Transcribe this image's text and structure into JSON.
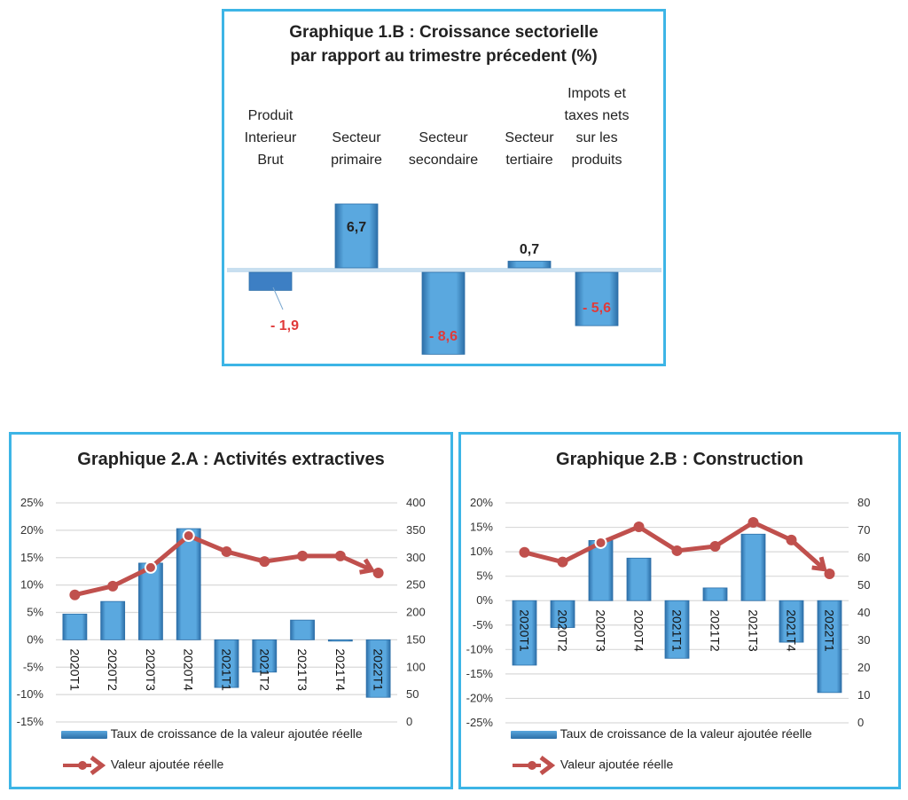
{
  "colors": {
    "frame": "#3db5e6",
    "bar": "#4b9bd6",
    "bar_dark": "#2d6fa8",
    "line": "#c0504d",
    "negative_label": "#e03a3a",
    "positive_label": "#222222",
    "grid": "#d9d9d9"
  },
  "chart_data": [
    {
      "type": "bar",
      "title_line1": "Graphique 1.B : Croissance sectorielle",
      "title_line2": "par rapport au trimestre précedent (%)",
      "categories": [
        [
          "Produit",
          "Interieur",
          "Brut"
        ],
        [
          "Secteur",
          "primaire"
        ],
        [
          "Secteur",
          "secondaire"
        ],
        [
          "Secteur",
          "tertiaire"
        ],
        [
          "Impots et",
          "taxes nets",
          "sur les",
          "produits"
        ]
      ],
      "values": [
        -1.9,
        6.7,
        -8.6,
        0.7,
        -5.6
      ],
      "value_labels": [
        "- 1,9",
        "6,7",
        "- 8,6",
        "0,7",
        "- 5,6"
      ],
      "xlabel": "",
      "ylabel": "",
      "ylim": [
        -9,
        7
      ]
    },
    {
      "type": "bar",
      "title": "Graphique 2.A : Activités extractives",
      "categories": [
        "2020T1",
        "2020T2",
        "2020T3",
        "2020T4",
        "2021T1",
        "2021T2",
        "2021T3",
        "2021T4",
        "2022T1"
      ],
      "series": [
        {
          "name": "Taux de croissance de la valeur ajoutée réelle",
          "type": "bar",
          "axis": "left",
          "values": [
            4.7,
            7.0,
            14.0,
            20.3,
            -8.7,
            -5.9,
            3.6,
            -0.2,
            -10.5
          ]
        },
        {
          "name": "Valeur ajoutée réelle",
          "type": "line",
          "axis": "right",
          "values": [
            232,
            248,
            282,
            340,
            311,
            293,
            303,
            303,
            272
          ]
        }
      ],
      "y_left": {
        "min": -15,
        "max": 25,
        "step": 5,
        "ticks": [
          "25%",
          "20%",
          "15%",
          "10%",
          "5%",
          "0%",
          "-5%",
          "-10%",
          "-15%"
        ]
      },
      "y_right": {
        "min": 0,
        "max": 400,
        "step": 50,
        "ticks": [
          "400",
          "350",
          "300",
          "250",
          "200",
          "150",
          "100",
          "50",
          "0"
        ]
      },
      "legend": "bottom",
      "grid": true
    },
    {
      "type": "bar",
      "title": "Graphique 2.B : Construction",
      "categories": [
        "2020T1",
        "2020T2",
        "2020T3",
        "2020T4",
        "2021T1",
        "2021T2",
        "2021T3",
        "2021T4",
        "2022T1"
      ],
      "series": [
        {
          "name": "Taux de croissance de la valeur ajoutée réelle",
          "type": "bar",
          "axis": "left",
          "values": [
            -13.2,
            -5.5,
            12.3,
            8.7,
            -11.8,
            2.6,
            13.6,
            -8.5,
            -18.8
          ]
        },
        {
          "name": "Valeur ajoutée réelle",
          "type": "line",
          "axis": "right",
          "values": [
            62,
            58.5,
            65.5,
            71.3,
            62.6,
            64.2,
            72.9,
            66.5,
            54.2
          ]
        }
      ],
      "y_left": {
        "min": -25,
        "max": 20,
        "step": 5,
        "ticks": [
          "20%",
          "15%",
          "10%",
          "5%",
          "0%",
          "-5%",
          "-10%",
          "-15%",
          "-20%",
          "-25%"
        ]
      },
      "y_right": {
        "min": 0,
        "max": 80,
        "step": 10,
        "ticks": [
          "80",
          "70",
          "60",
          "50",
          "40",
          "30",
          "20",
          "10",
          "0"
        ]
      },
      "legend": "bottom",
      "grid": true
    }
  ],
  "legend": {
    "bar_label": "Taux de croissance de la valeur ajoutée réelle",
    "line_label": "Valeur ajoutée réelle"
  }
}
